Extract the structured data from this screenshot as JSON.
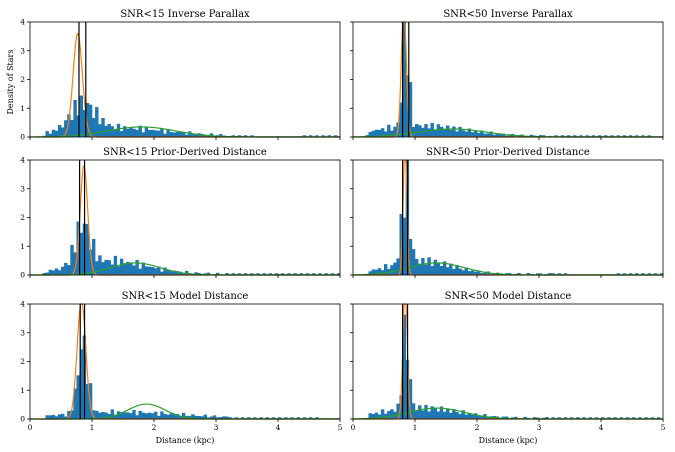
{
  "chart_data": {
    "type": "bar",
    "layout": "3x2 grid of histogram panels with fitted gaussian curves",
    "xlabel": "Distance (kpc)",
    "ylabel": "Density of Stars",
    "xlim": [
      0,
      5
    ],
    "ylim": [
      0,
      4
    ],
    "xticks": [
      "0",
      "1",
      "2",
      "3",
      "4",
      "5"
    ],
    "yticks": [
      "0",
      "1",
      "2",
      "3",
      "4"
    ],
    "colors": {
      "histogram": "#1f77b4",
      "narrow_fit": "#ff7f0e",
      "broad_fit": "#2ca02c",
      "marker_lines": "#000000"
    },
    "panels": [
      {
        "title": "SNR<15 Inverse Parallax",
        "vlines": [
          0.79,
          0.9
        ],
        "narrow_fit": {
          "mu": 0.77,
          "sigma": 0.075,
          "amp": 3.6
        },
        "broad_fit": {
          "mu": 1.8,
          "sigma": 0.55,
          "amp": 0.35
        },
        "hist_peak": {
          "mu": 0.85,
          "sigma": 0.2,
          "amp": 0.9
        },
        "hist_tail": {
          "mu": 1.4,
          "sigma": 0.8,
          "amp": 0.28
        }
      },
      {
        "title": "SNR<50 Inverse Parallax",
        "vlines": [
          0.8,
          0.9
        ],
        "narrow_fit": {
          "mu": 0.82,
          "sigma": 0.04,
          "amp": 4.5
        },
        "broad_fit": {
          "mu": 1.6,
          "sigma": 0.55,
          "amp": 0.28
        },
        "hist_peak": {
          "mu": 0.85,
          "sigma": 0.05,
          "amp": 3.2
        },
        "hist_tail": {
          "mu": 1.1,
          "sigma": 0.7,
          "amp": 0.35
        }
      },
      {
        "title": "SNR<15 Prior-Derived Distance",
        "vlines": [
          0.8,
          0.88
        ],
        "narrow_fit": {
          "mu": 0.87,
          "sigma": 0.06,
          "amp": 3.8
        },
        "broad_fit": {
          "mu": 1.7,
          "sigma": 0.4,
          "amp": 0.42
        },
        "hist_peak": {
          "mu": 0.85,
          "sigma": 0.12,
          "amp": 1.4
        },
        "hist_tail": {
          "mu": 1.3,
          "sigma": 0.6,
          "amp": 0.45
        }
      },
      {
        "title": "SNR<50 Prior-Derived Distance",
        "vlines": [
          0.8,
          0.88
        ],
        "narrow_fit": {
          "mu": 0.84,
          "sigma": 0.03,
          "amp": 4.5
        },
        "broad_fit": {
          "mu": 1.35,
          "sigma": 0.45,
          "amp": 0.42
        },
        "hist_peak": {
          "mu": 0.85,
          "sigma": 0.06,
          "amp": 2.8
        },
        "hist_tail": {
          "mu": 1.1,
          "sigma": 0.5,
          "amp": 0.45
        }
      },
      {
        "title": "SNR<15 Model Distance",
        "vlines": [
          0.81,
          0.88
        ],
        "narrow_fit": {
          "mu": 0.83,
          "sigma": 0.07,
          "amp": 4.1
        },
        "broad_fit": {
          "mu": 1.88,
          "sigma": 0.3,
          "amp": 0.52
        },
        "hist_peak": {
          "mu": 0.85,
          "sigma": 0.08,
          "amp": 2.4
        },
        "hist_tail": {
          "mu": 1.5,
          "sigma": 0.9,
          "amp": 0.2
        }
      },
      {
        "title": "SNR<50 Model Distance",
        "vlines": [
          0.8,
          0.88
        ],
        "narrow_fit": {
          "mu": 0.84,
          "sigma": 0.035,
          "amp": 4.5
        },
        "broad_fit": {
          "mu": 1.35,
          "sigma": 0.45,
          "amp": 0.38
        },
        "hist_peak": {
          "mu": 0.85,
          "sigma": 0.05,
          "amp": 2.7
        },
        "hist_tail": {
          "mu": 1.1,
          "sigma": 0.6,
          "amp": 0.35
        }
      }
    ]
  }
}
